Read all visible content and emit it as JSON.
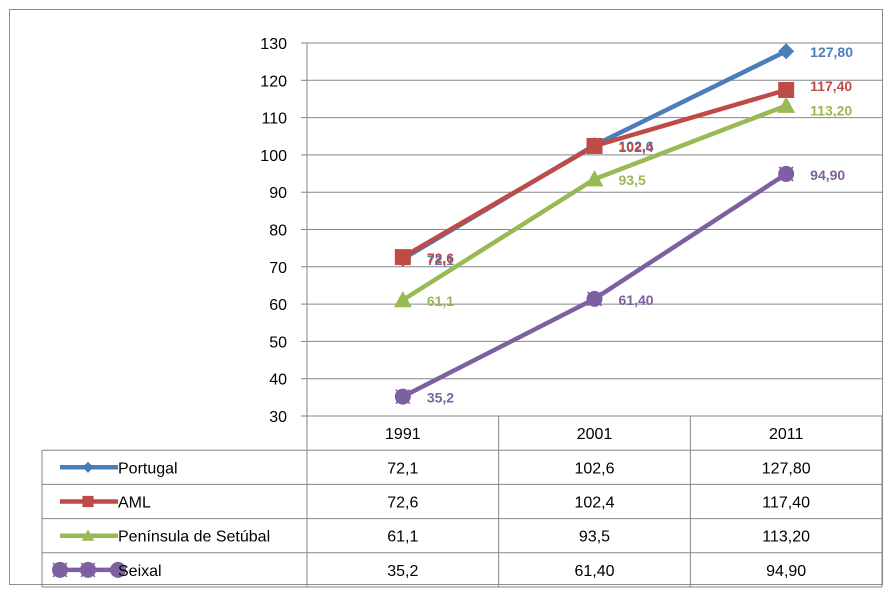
{
  "chart_data": {
    "type": "line",
    "title": "",
    "xlabel": "",
    "ylabel": "",
    "categories": [
      "1991",
      "2001",
      "2011"
    ],
    "ylim": [
      30,
      130
    ],
    "yticks": [
      30,
      40,
      50,
      60,
      70,
      80,
      90,
      100,
      110,
      120,
      130
    ],
    "grid": true,
    "legend": "data-table",
    "series": [
      {
        "name": "Portugal",
        "values": [
          72.1,
          102.6,
          127.8
        ],
        "labels": [
          "72,1",
          "102,6",
          "127,80"
        ],
        "color": "#4a7ebb",
        "marker": "diamond"
      },
      {
        "name": "AML",
        "values": [
          72.6,
          102.4,
          117.4
        ],
        "labels": [
          "72,6",
          "102,4",
          "117,40"
        ],
        "color": "#be4b48",
        "marker": "square"
      },
      {
        "name": "Península de Setúbal",
        "values": [
          61.1,
          93.5,
          113.2
        ],
        "labels": [
          "61,1",
          "93,5",
          "113,20"
        ],
        "color": "#98b954",
        "marker": "triangle"
      },
      {
        "name": "Seixal",
        "values": [
          35.2,
          61.4,
          94.9
        ],
        "labels": [
          "35,2",
          "61,40",
          "94,90"
        ],
        "color": "#7d60a0",
        "marker": "x-circle"
      }
    ]
  }
}
